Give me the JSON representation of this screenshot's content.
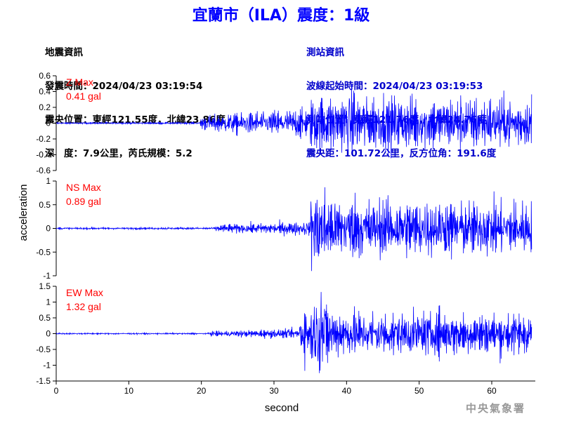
{
  "header": {
    "title": "宜蘭市（ILA）震度：1級"
  },
  "earthquake_info": {
    "heading": "地震資訊",
    "origin_time": "發震時間：2024/04/23 03:19:54",
    "epicenter": "震央位置：東經121.55度，北緯23.86度",
    "depth_magnitude": "深　度：7.9公里，芮氏規模：5.2"
  },
  "station_info": {
    "heading": "測站資訊",
    "onset_time": "波線起始時間：2024/04/23 03:19:53",
    "station_location": "測站位置：東經121.76度，北緯24.76度",
    "distance_azimuth": "震央距：101.72公里，反方位角：191.6度"
  },
  "footer": {
    "agency": "中央氣象署"
  },
  "colors": {
    "title": "#0000ff",
    "station_text": "#0000cc",
    "trace": "#0000ff",
    "max_label": "#ff0000"
  },
  "chart_data": {
    "type": "line",
    "xlabel": "second",
    "ylabel": "acceleration",
    "x_range": [
      0,
      66
    ],
    "x_ticks": [
      "0",
      "10",
      "20",
      "30",
      "40",
      "50",
      "60"
    ],
    "grid": false,
    "panels": [
      {
        "name": "Z",
        "max_label": "Z Max",
        "max_value": "0.41 gal",
        "ylim": [
          -0.6,
          0.6
        ],
        "y_ticks": [
          "-0.6",
          "-0.4",
          "-0.2",
          "0",
          "0.2",
          "0.4",
          "0.6"
        ],
        "envelope": {
          "pre_event_level": 0.01,
          "onset_s": 19.8,
          "p_level": 0.15,
          "s_onset_s": 35.0,
          "s_level": 0.33,
          "peak": 0.41,
          "peak_time_s": 41.0,
          "end_level": 0.22,
          "end_s": 65.5
        }
      },
      {
        "name": "NS",
        "max_label": "NS Max",
        "max_value": "0.89 gal",
        "ylim": [
          -1,
          1
        ],
        "y_ticks": [
          "-1",
          "-0.5",
          "0",
          "0.5",
          "1"
        ],
        "envelope": {
          "pre_event_level": 0.02,
          "onset_s": 22.0,
          "p_level": 0.12,
          "s_onset_s": 35.0,
          "s_level": 0.6,
          "peak": 0.89,
          "peak_time_s": 36.2,
          "end_level": 0.4,
          "end_s": 65.5
        }
      },
      {
        "name": "EW",
        "max_label": "EW Max",
        "max_value": "1.32 gal",
        "ylim": [
          -1.5,
          1.5
        ],
        "y_ticks": [
          "-1.5",
          "-1",
          "-0.5",
          "0",
          "0.5",
          "1",
          "1.5"
        ],
        "envelope": {
          "pre_event_level": 0.02,
          "onset_s": 21.0,
          "p_level": 0.12,
          "s_onset_s": 33.5,
          "s_level": 0.7,
          "peak": 1.32,
          "peak_time_s": 36.5,
          "end_level": 0.4,
          "end_s": 65.5
        }
      }
    ]
  }
}
